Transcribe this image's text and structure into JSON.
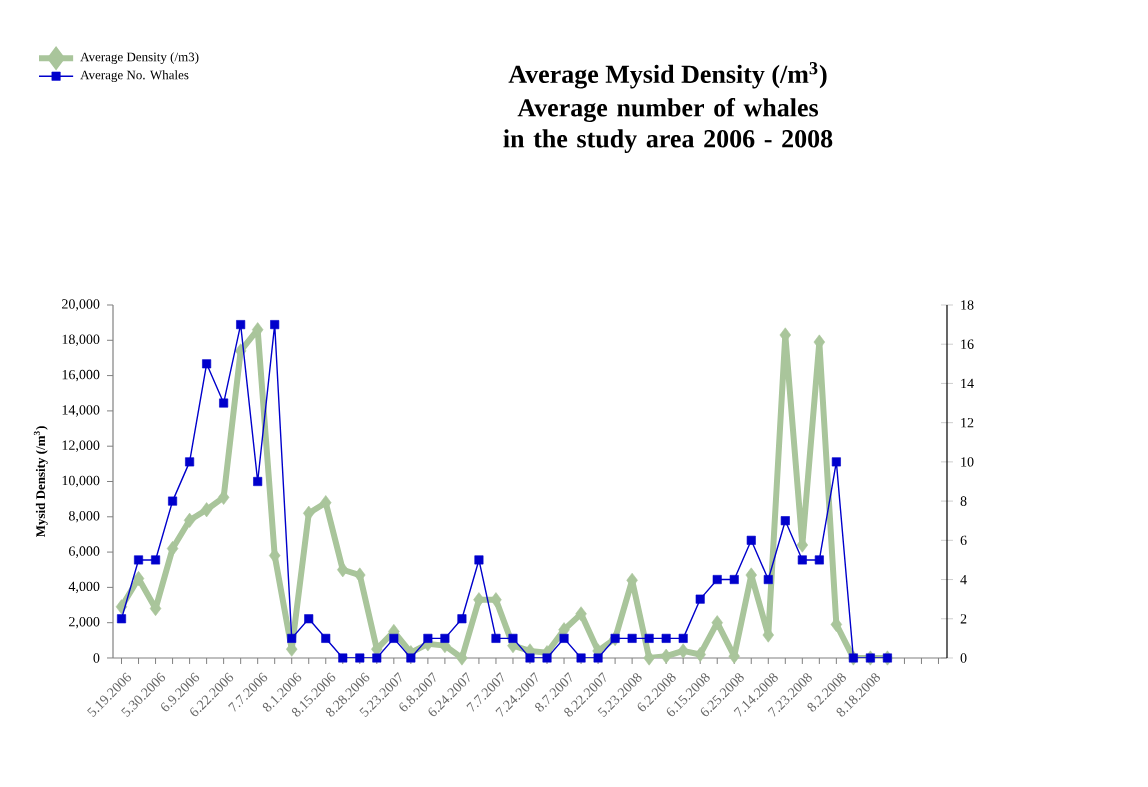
{
  "chart_data": {
    "type": "line",
    "title": "Average Mysid Density (/m$^{3}$)",
    "subtitle": "Average number of whales in the study area 2006 - 2008",
    "ylabel": "Mysid Density (/m$^{3}$)",
    "categories": [
      "5.19.2006",
      null,
      "5.30.2006",
      null,
      "6.9.2006",
      null,
      "6.22.2006",
      null,
      "7.7.2006",
      null,
      "8.1.2006",
      null,
      "8.15.2006",
      null,
      "8.28.2006",
      null,
      "5.23.2007",
      null,
      "6.8.2007",
      null,
      "6.24.2007",
      null,
      "7.7.2007",
      null,
      "7.24.2007",
      null,
      "8.7.2007",
      null,
      "8.22.2007",
      null,
      "5.23.2008",
      null,
      "6.2.2008",
      null,
      "6.15.2008",
      null,
      "6.25.2008",
      null,
      "7.14.2008",
      null,
      "7.23.2008",
      null,
      "8.2.2008",
      null,
      "8.18.2008",
      null,
      null,
      null,
      null
    ],
    "series": [
      {
        "name": "Average Density (/m3)",
        "color": "#a9c59b",
        "marker": "diamond",
        "values": [
          2900,
          4500,
          2800,
          6200,
          7800,
          8400,
          9100,
          17400,
          18600,
          5800,
          500,
          8200,
          8800,
          5000,
          4700,
          500,
          1500,
          300,
          800,
          700,
          0,
          3300,
          3300,
          700,
          400,
          300,
          1600,
          2500,
          400,
          1100,
          4400,
          0,
          100,
          400,
          200,
          2000,
          100,
          4700,
          1300,
          18300,
          6400,
          17900,
          1900,
          0,
          0,
          0,
          null,
          null,
          null
        ]
      },
      {
        "name": "Average No. Whales",
        "color": "#0000cc",
        "marker": "square",
        "axis": "y2",
        "values": [
          2,
          5,
          5,
          8,
          10,
          15,
          13,
          17,
          9,
          17,
          1,
          2,
          1,
          0,
          0,
          0,
          1,
          0,
          1,
          1,
          2,
          5,
          1,
          1,
          0,
          0,
          1,
          0,
          0,
          1,
          1,
          1,
          1,
          1,
          3,
          4,
          4,
          6,
          4,
          7,
          5,
          5,
          10,
          0,
          0,
          0,
          null,
          null,
          null
        ]
      }
    ],
    "ylim": [
      0,
      20000
    ],
    "yticks": [
      {
        "value": 0,
        "label": "0"
      },
      {
        "value": 2000,
        "label": "2,000"
      },
      {
        "value": 4000,
        "label": "4,000"
      },
      {
        "value": 6000,
        "label": "6,000"
      },
      {
        "value": 8000,
        "label": "8,000"
      },
      {
        "value": 10000,
        "label": "10,000"
      },
      {
        "value": 12000,
        "label": "12,000"
      },
      {
        "value": 14000,
        "label": "14,000"
      },
      {
        "value": 16000,
        "label": "16,000"
      },
      {
        "value": 18000,
        "label": "18,000"
      },
      {
        "value": 20000,
        "label": "20,000"
      }
    ],
    "y2lim": [
      0,
      18
    ],
    "y2ticks": [
      0,
      2,
      4,
      6,
      8,
      10,
      12,
      14,
      16,
      18
    ],
    "legend": "top left",
    "grid": false
  }
}
